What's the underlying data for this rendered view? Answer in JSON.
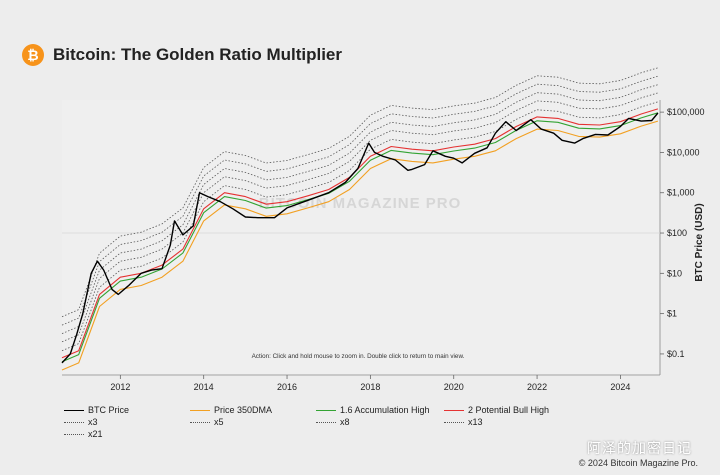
{
  "header": {
    "logo_glyph": "₿",
    "title": "Bitcoin: The Golden Ratio Multiplier"
  },
  "footer": {
    "credit": "© 2024 Bitcoin Magazine Pro.",
    "wechat_watermark": "阿泽的加密日记"
  },
  "colors": {
    "btc_price": "#000000",
    "dma350": "#f2a022",
    "accumulation": "#33a333",
    "bull_high": "#e53232",
    "multiples": "#555555",
    "background": "#ededed",
    "logo": "#f7931a"
  },
  "chart_data": {
    "type": "line",
    "y_scale": "log",
    "xlim": [
      2010.6,
      2024.95
    ],
    "ylim": [
      0.03,
      200000
    ],
    "ylabel": "BTC Price (USD)",
    "x_ticks": [
      2012,
      2014,
      2016,
      2018,
      2020,
      2022,
      2024
    ],
    "y_ticks": [
      0.1,
      1,
      10,
      100,
      1000,
      10000,
      100000
    ],
    "y_tick_labels": [
      "$0.1",
      "$1",
      "$10",
      "$100",
      "$1,000",
      "$10,000",
      "$100,000"
    ],
    "annotation": "Action: Click and hold mouse to zoom in.  Double click to return to main view.",
    "watermark": "BITCOIN MAGAZINE PRO",
    "series": [
      {
        "name": "BTC Price",
        "style": "solid",
        "x": [
          2010.6,
          2010.8,
          2010.95,
          2011.1,
          2011.3,
          2011.45,
          2011.6,
          2011.8,
          2011.95,
          2012.2,
          2012.5,
          2012.75,
          2013.0,
          2013.2,
          2013.3,
          2013.5,
          2013.75,
          2013.9,
          2014.1,
          2014.4,
          2014.7,
          2015.0,
          2015.3,
          2015.7,
          2016.0,
          2016.5,
          2017.0,
          2017.4,
          2017.7,
          2017.96,
          2018.1,
          2018.3,
          2018.6,
          2018.9,
          2019.0,
          2019.3,
          2019.5,
          2019.8,
          2020.0,
          2020.2,
          2020.5,
          2020.8,
          2021.0,
          2021.25,
          2021.5,
          2021.85,
          2022.1,
          2022.4,
          2022.6,
          2022.9,
          2023.1,
          2023.4,
          2023.7,
          2024.0,
          2024.2,
          2024.5,
          2024.75,
          2024.9
        ],
        "y": [
          0.06,
          0.1,
          0.3,
          1,
          10,
          20,
          12,
          4,
          3,
          5,
          10,
          12,
          13,
          50,
          200,
          90,
          150,
          1000,
          800,
          600,
          400,
          250,
          240,
          240,
          420,
          650,
          1000,
          1800,
          4000,
          17000,
          10000,
          8000,
          6500,
          3600,
          3800,
          5000,
          11000,
          8000,
          7200,
          5500,
          9500,
          13000,
          30000,
          58000,
          35000,
          65000,
          38000,
          30000,
          20000,
          17000,
          22000,
          28000,
          27000,
          44000,
          70000,
          60000,
          62000,
          95000
        ]
      },
      {
        "name": "Price 350DMA",
        "style": "solid",
        "x": [
          2010.6,
          2011.0,
          2011.5,
          2012.0,
          2012.5,
          2013.0,
          2013.5,
          2014.0,
          2014.5,
          2015.0,
          2015.5,
          2016.0,
          2016.5,
          2017.0,
          2017.5,
          2018.0,
          2018.5,
          2019.0,
          2019.5,
          2020.0,
          2020.5,
          2021.0,
          2021.5,
          2022.0,
          2022.5,
          2023.0,
          2023.5,
          2024.0,
          2024.5,
          2024.9
        ],
        "y": [
          0.04,
          0.06,
          1.5,
          4,
          5,
          8,
          20,
          200,
          500,
          400,
          260,
          300,
          420,
          600,
          1200,
          4000,
          7000,
          6000,
          5500,
          6800,
          8000,
          11000,
          22000,
          38000,
          35000,
          25000,
          24000,
          29000,
          45000,
          60000
        ]
      },
      {
        "name": "1.6 Accumulation High",
        "style": "solid",
        "derived_multiplier": 1.6
      },
      {
        "name": "2 Potential Bull High",
        "style": "solid",
        "derived_multiplier": 2
      },
      {
        "name": "x3",
        "style": "dotted",
        "derived_multiplier": 3
      },
      {
        "name": "x5",
        "style": "dotted",
        "derived_multiplier": 5
      },
      {
        "name": "x8",
        "style": "dotted",
        "derived_multiplier": 8
      },
      {
        "name": "x13",
        "style": "dotted",
        "derived_multiplier": 13
      },
      {
        "name": "x21",
        "style": "dotted",
        "derived_multiplier": 21
      }
    ]
  }
}
